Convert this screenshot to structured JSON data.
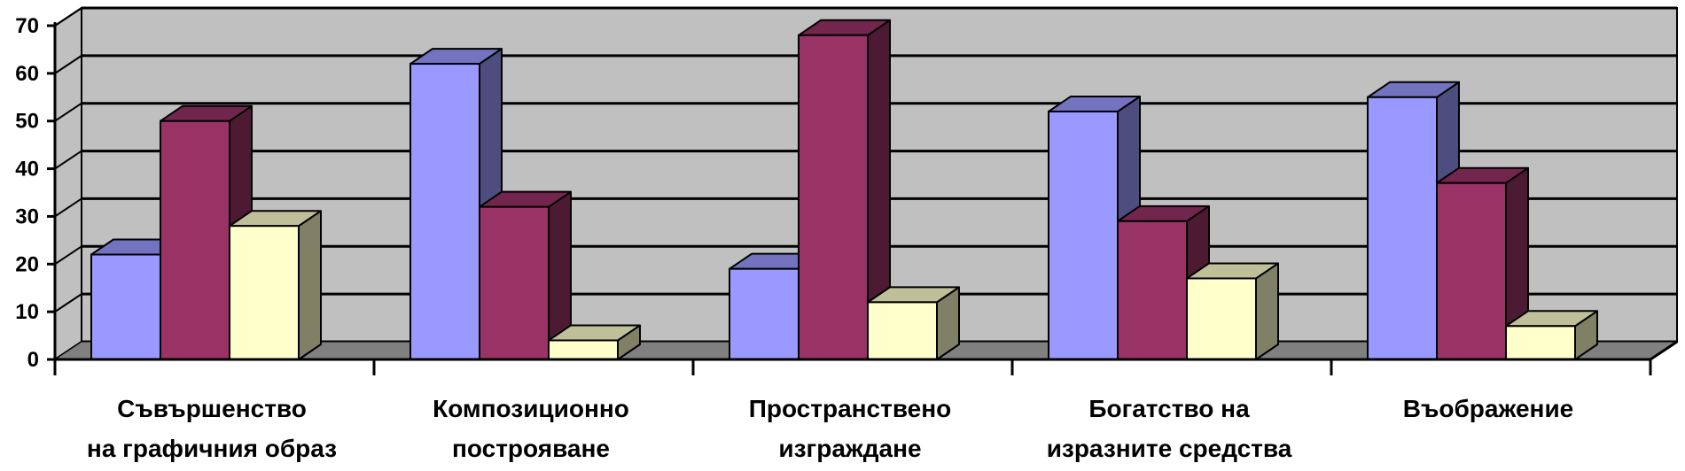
{
  "chart_data": {
    "type": "bar",
    "three_d": true,
    "title": "",
    "xlabel": "",
    "ylabel": "",
    "ylim": [
      0,
      70
    ],
    "yticks": [
      0,
      10,
      20,
      30,
      40,
      50,
      60,
      70
    ],
    "grid": true,
    "legend": "none",
    "categories": [
      [
        "Съвършенство",
        "на графичния образ"
      ],
      [
        "Композиционно",
        "построяване"
      ],
      [
        "Пространствено",
        "изграждане"
      ],
      [
        "Богатство на",
        "изразните средства"
      ],
      [
        "Въображение"
      ]
    ],
    "series": [
      {
        "values": [
          22,
          62,
          19,
          52,
          55
        ],
        "color": "#9999FF",
        "side_color": "#4D4D80",
        "top_color": "#7373BF"
      },
      {
        "values": [
          50,
          32,
          68,
          29,
          37
        ],
        "color": "#993366",
        "side_color": "#4D1A33",
        "top_color": "#73264D"
      },
      {
        "values": [
          28,
          4,
          12,
          17,
          7
        ],
        "color": "#FFFFCC",
        "side_color": "#808066",
        "top_color": "#BFBF99"
      }
    ],
    "wall_color": "#C0C0C0",
    "floor_color": "#808080"
  }
}
